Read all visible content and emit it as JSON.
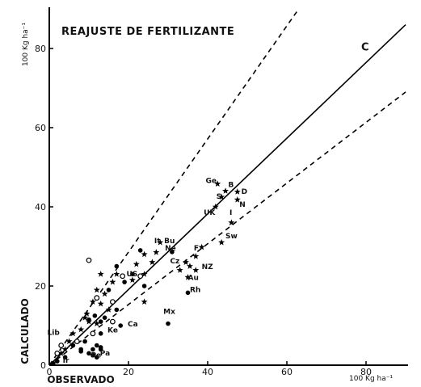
{
  "chart_data": {
    "type": "scatter",
    "title": "REAJUSTE DE FERTILIZANTE",
    "xlabel": "OBSERVADO",
    "ylabel": "CALCULADO",
    "x_unit": "100 Kg ha⁻¹",
    "y_unit": "100 Kg ha⁻¹",
    "xlim": [
      0,
      90
    ],
    "ylim": [
      0,
      90
    ],
    "xticks": [
      "0",
      "20",
      "40",
      "60",
      "80"
    ],
    "yticks": [
      "0",
      "20",
      "40",
      "60",
      "80"
    ],
    "grid": false,
    "lines": [
      {
        "label": "C",
        "style": "solid",
        "from": [
          0,
          0
        ],
        "to": [
          90,
          86
        ]
      },
      {
        "label": "",
        "style": "dashed",
        "from": [
          0,
          0
        ],
        "to": [
          63,
          90
        ]
      },
      {
        "label": "",
        "style": "dashed",
        "from": [
          0,
          0
        ],
        "to": [
          90,
          69
        ]
      }
    ],
    "annotations": [
      {
        "text": "Ge",
        "x": 39.5,
        "y": 46.0
      },
      {
        "text": "B",
        "x": 45.2,
        "y": 45.0
      },
      {
        "text": "D",
        "x": 48.5,
        "y": 43.3
      },
      {
        "text": "S",
        "x": 42.2,
        "y": 42.0
      },
      {
        "text": "N",
        "x": 48.0,
        "y": 40.0
      },
      {
        "text": "UK",
        "x": 39.0,
        "y": 38.0
      },
      {
        "text": "I",
        "x": 45.5,
        "y": 38.0
      },
      {
        "text": "Sw",
        "x": 44.5,
        "y": 32.0
      },
      {
        "text": "F",
        "x": 36.5,
        "y": 29.0
      },
      {
        "text": "It",
        "x": 26.5,
        "y": 30.8
      },
      {
        "text": "Bu",
        "x": 29.0,
        "y": 30.8
      },
      {
        "text": "Ne",
        "x": 29.2,
        "y": 29.0
      },
      {
        "text": "Cz",
        "x": 30.5,
        "y": 25.7
      },
      {
        "text": "NZ",
        "x": 38.5,
        "y": 24.3
      },
      {
        "text": "Au",
        "x": 35.0,
        "y": 21.5
      },
      {
        "text": "Rh",
        "x": 35.5,
        "y": 18.5
      },
      {
        "text": "US",
        "x": 19.5,
        "y": 22.5
      },
      {
        "text": "Mx",
        "x": 28.8,
        "y": 13.0
      },
      {
        "text": "Ca",
        "x": 19.8,
        "y": 9.8
      },
      {
        "text": "Ke",
        "x": 14.7,
        "y": 8.3
      },
      {
        "text": "Lib",
        "x": -0.5,
        "y": 7.7
      },
      {
        "text": "Ir",
        "x": 3.4,
        "y": 0.6
      },
      {
        "text": "Pe",
        "x": 10.5,
        "y": 1.9
      },
      {
        "text": "Pa",
        "x": 12.8,
        "y": 2.4
      }
    ],
    "series": [
      {
        "marker": "star",
        "points": [
          [
            42.5,
            45.8
          ],
          [
            44.5,
            44.0
          ],
          [
            47.5,
            43.8
          ],
          [
            43.5,
            42.5
          ],
          [
            47.5,
            41.8
          ],
          [
            42.0,
            40.0
          ],
          [
            46.0,
            36.0
          ],
          [
            43.5,
            31.0
          ],
          [
            38.5,
            29.8
          ],
          [
            37.0,
            27.5
          ],
          [
            34.5,
            26.0
          ],
          [
            35.5,
            25.0
          ],
          [
            37.0,
            24.0
          ],
          [
            33.0,
            24.0
          ],
          [
            35.0,
            22.2
          ],
          [
            28.0,
            31.0
          ],
          [
            27.0,
            28.5
          ],
          [
            26.0,
            26.0
          ],
          [
            24.0,
            28.0
          ],
          [
            22.0,
            25.5
          ],
          [
            24.0,
            23.0
          ],
          [
            21.0,
            21.5
          ],
          [
            17.0,
            23.0
          ],
          [
            16.0,
            21.0
          ],
          [
            13.0,
            23.0
          ],
          [
            12.0,
            19.0
          ],
          [
            11.0,
            16.0
          ],
          [
            14.0,
            18.0
          ],
          [
            15.0,
            14.0
          ],
          [
            9.0,
            12.0
          ],
          [
            10.0,
            11.0
          ],
          [
            12.0,
            10.5
          ],
          [
            8.0,
            9.0
          ],
          [
            6.0,
            8.0
          ],
          [
            5.0,
            6.0
          ],
          [
            4.0,
            4.0
          ],
          [
            3.0,
            3.0
          ],
          [
            24.0,
            16.0
          ],
          [
            13.0,
            15.5
          ],
          [
            9.5,
            13.0
          ]
        ]
      },
      {
        "marker": "filled-circle",
        "points": [
          [
            30.0,
            10.5
          ],
          [
            35.0,
            18.3
          ],
          [
            31.0,
            28.6
          ],
          [
            24.0,
            20.0
          ],
          [
            21.0,
            23.0
          ],
          [
            19.0,
            21.0
          ],
          [
            18.0,
            10.0
          ],
          [
            13.0,
            8.0
          ],
          [
            10.0,
            11.5
          ],
          [
            11.0,
            4.0
          ],
          [
            12.0,
            5.0
          ],
          [
            9.0,
            6.0
          ],
          [
            8.0,
            3.5
          ],
          [
            13.0,
            4.5
          ],
          [
            10.0,
            3.0
          ],
          [
            2.0,
            1.0
          ],
          [
            4.0,
            2.0
          ],
          [
            6.0,
            5.0
          ],
          [
            12.0,
            2.0
          ],
          [
            14.0,
            12.0
          ],
          [
            17.0,
            14.0
          ],
          [
            13.0,
            11.0
          ],
          [
            11.5,
            12.5
          ],
          [
            1.0,
            0.5
          ],
          [
            15.0,
            19.0
          ],
          [
            23.0,
            29.0
          ],
          [
            17.0,
            25.0
          ],
          [
            11.0,
            2.5
          ],
          [
            13.0,
            4.0
          ],
          [
            8.0,
            4.0
          ]
        ]
      },
      {
        "marker": "open-circle",
        "points": [
          [
            10.0,
            26.5
          ],
          [
            23.0,
            22.5
          ],
          [
            12.0,
            17.0
          ],
          [
            16.0,
            16.0
          ],
          [
            11.0,
            8.0
          ],
          [
            7.0,
            6.0
          ],
          [
            3.0,
            5.0
          ],
          [
            2.0,
            3.0
          ],
          [
            16.0,
            11.0
          ],
          [
            18.5,
            22.5
          ]
        ]
      }
    ]
  }
}
